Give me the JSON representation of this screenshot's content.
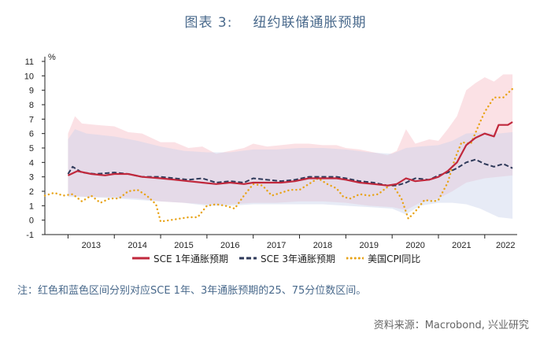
{
  "title": {
    "label": "图表 3:",
    "text": "纽约联储通胀预期"
  },
  "note": "注：红色和蓝色区间分别对应SCE 1年、3年通胀预期的25、75分位数区间。",
  "source": "资料来源：Macrobond, 兴业研究",
  "chart_data": {
    "type": "line",
    "ylabel": "%",
    "ylim": [
      -1,
      11
    ],
    "xlim": [
      2012.5,
      2022.7
    ],
    "yticks": [
      -1,
      0,
      1,
      2,
      3,
      4,
      5,
      6,
      7,
      8,
      9,
      10,
      11
    ],
    "xticks": [
      "2013",
      "2014",
      "2015",
      "2016",
      "2017",
      "2018",
      "2019",
      "2020",
      "2021",
      "2022"
    ],
    "grid": false,
    "legend_position": "bottom",
    "colors": {
      "sce1": "#c0283c",
      "sce3": "#2f3a5a",
      "cpi": "#e8a317",
      "band1": "#f7c9cf",
      "band3": "#c9d3ea"
    },
    "series": [
      {
        "name": "SCE 1年通胀预期",
        "style": "solid",
        "points": [
          [
            2013.0,
            3.1
          ],
          [
            2013.2,
            3.4
          ],
          [
            2013.5,
            3.2
          ],
          [
            2013.8,
            3.1
          ],
          [
            2014.0,
            3.2
          ],
          [
            2014.3,
            3.2
          ],
          [
            2014.6,
            3.0
          ],
          [
            2015.0,
            2.9
          ],
          [
            2015.3,
            2.8
          ],
          [
            2015.6,
            2.7
          ],
          [
            2015.9,
            2.6
          ],
          [
            2016.2,
            2.5
          ],
          [
            2016.5,
            2.6
          ],
          [
            2016.8,
            2.5
          ],
          [
            2017.0,
            2.6
          ],
          [
            2017.3,
            2.6
          ],
          [
            2017.6,
            2.6
          ],
          [
            2017.9,
            2.7
          ],
          [
            2018.2,
            2.9
          ],
          [
            2018.5,
            2.9
          ],
          [
            2018.8,
            2.9
          ],
          [
            2019.0,
            2.8
          ],
          [
            2019.3,
            2.6
          ],
          [
            2019.6,
            2.5
          ],
          [
            2019.9,
            2.4
          ],
          [
            2020.1,
            2.5
          ],
          [
            2020.3,
            2.9
          ],
          [
            2020.5,
            2.7
          ],
          [
            2020.8,
            2.8
          ],
          [
            2021.0,
            3.0
          ],
          [
            2021.2,
            3.4
          ],
          [
            2021.4,
            4.0
          ],
          [
            2021.6,
            5.2
          ],
          [
            2021.8,
            5.7
          ],
          [
            2022.0,
            6.0
          ],
          [
            2022.2,
            5.8
          ],
          [
            2022.3,
            6.6
          ],
          [
            2022.5,
            6.6
          ],
          [
            2022.6,
            6.8
          ]
        ]
      },
      {
        "name": "SCE 3年通胀预期",
        "style": "dashed",
        "points": [
          [
            2013.0,
            3.2
          ],
          [
            2013.1,
            3.7
          ],
          [
            2013.3,
            3.3
          ],
          [
            2013.6,
            3.2
          ],
          [
            2014.0,
            3.3
          ],
          [
            2014.3,
            3.2
          ],
          [
            2014.6,
            3.0
          ],
          [
            2015.0,
            3.0
          ],
          [
            2015.3,
            2.9
          ],
          [
            2015.6,
            2.8
          ],
          [
            2015.9,
            2.9
          ],
          [
            2016.2,
            2.6
          ],
          [
            2016.5,
            2.7
          ],
          [
            2016.8,
            2.6
          ],
          [
            2017.0,
            2.9
          ],
          [
            2017.3,
            2.8
          ],
          [
            2017.6,
            2.7
          ],
          [
            2017.9,
            2.8
          ],
          [
            2018.2,
            3.0
          ],
          [
            2018.5,
            3.0
          ],
          [
            2018.8,
            3.0
          ],
          [
            2019.0,
            2.9
          ],
          [
            2019.3,
            2.7
          ],
          [
            2019.6,
            2.6
          ],
          [
            2019.9,
            2.4
          ],
          [
            2020.1,
            2.4
          ],
          [
            2020.3,
            2.6
          ],
          [
            2020.5,
            2.9
          ],
          [
            2020.8,
            2.8
          ],
          [
            2021.0,
            3.1
          ],
          [
            2021.2,
            3.3
          ],
          [
            2021.4,
            3.6
          ],
          [
            2021.6,
            4.0
          ],
          [
            2021.8,
            4.2
          ],
          [
            2022.0,
            3.9
          ],
          [
            2022.2,
            3.7
          ],
          [
            2022.4,
            3.9
          ],
          [
            2022.6,
            3.6
          ]
        ]
      },
      {
        "name": "美国CPI同比",
        "style": "dotted",
        "points": [
          [
            2012.5,
            1.7
          ],
          [
            2012.7,
            1.9
          ],
          [
            2012.9,
            1.7
          ],
          [
            2013.1,
            1.8
          ],
          [
            2013.3,
            1.3
          ],
          [
            2013.5,
            1.7
          ],
          [
            2013.7,
            1.2
          ],
          [
            2013.9,
            1.5
          ],
          [
            2014.1,
            1.5
          ],
          [
            2014.3,
            2.0
          ],
          [
            2014.5,
            2.1
          ],
          [
            2014.7,
            1.7
          ],
          [
            2014.9,
            1.1
          ],
          [
            2015.0,
            -0.1
          ],
          [
            2015.2,
            0.0
          ],
          [
            2015.4,
            0.1
          ],
          [
            2015.6,
            0.2
          ],
          [
            2015.8,
            0.2
          ],
          [
            2016.0,
            1.0
          ],
          [
            2016.2,
            1.1
          ],
          [
            2016.4,
            1.0
          ],
          [
            2016.6,
            0.8
          ],
          [
            2016.8,
            1.7
          ],
          [
            2017.0,
            2.5
          ],
          [
            2017.2,
            2.4
          ],
          [
            2017.4,
            1.7
          ],
          [
            2017.6,
            1.9
          ],
          [
            2017.8,
            2.1
          ],
          [
            2018.0,
            2.1
          ],
          [
            2018.2,
            2.5
          ],
          [
            2018.4,
            2.9
          ],
          [
            2018.6,
            2.5
          ],
          [
            2018.8,
            2.2
          ],
          [
            2018.95,
            1.6
          ],
          [
            2019.1,
            1.5
          ],
          [
            2019.3,
            1.8
          ],
          [
            2019.5,
            1.7
          ],
          [
            2019.7,
            1.8
          ],
          [
            2019.9,
            2.3
          ],
          [
            2020.0,
            2.5
          ],
          [
            2020.2,
            1.5
          ],
          [
            2020.35,
            0.1
          ],
          [
            2020.5,
            0.6
          ],
          [
            2020.7,
            1.4
          ],
          [
            2020.9,
            1.3
          ],
          [
            2021.0,
            1.4
          ],
          [
            2021.2,
            2.6
          ],
          [
            2021.35,
            4.2
          ],
          [
            2021.5,
            5.4
          ],
          [
            2021.7,
            5.3
          ],
          [
            2021.9,
            6.8
          ],
          [
            2022.0,
            7.5
          ],
          [
            2022.2,
            8.5
          ],
          [
            2022.4,
            8.5
          ],
          [
            2022.6,
            9.1
          ]
        ]
      }
    ],
    "bands": [
      {
        "name": "SCE 1年25-75分位数区间",
        "upper": [
          [
            2013.0,
            6.0
          ],
          [
            2013.15,
            7.2
          ],
          [
            2013.3,
            6.7
          ],
          [
            2013.6,
            6.6
          ],
          [
            2014.0,
            6.5
          ],
          [
            2014.3,
            6.1
          ],
          [
            2014.6,
            6.0
          ],
          [
            2015.0,
            5.4
          ],
          [
            2015.3,
            5.4
          ],
          [
            2015.6,
            5.0
          ],
          [
            2015.9,
            5.1
          ],
          [
            2016.2,
            4.6
          ],
          [
            2016.5,
            4.8
          ],
          [
            2016.8,
            5.0
          ],
          [
            2017.0,
            5.3
          ],
          [
            2017.3,
            5.1
          ],
          [
            2017.6,
            5.2
          ],
          [
            2017.9,
            5.3
          ],
          [
            2018.2,
            5.3
          ],
          [
            2018.5,
            5.2
          ],
          [
            2018.8,
            5.2
          ],
          [
            2019.0,
            5.0
          ],
          [
            2019.3,
            4.9
          ],
          [
            2019.6,
            4.7
          ],
          [
            2019.9,
            4.5
          ],
          [
            2020.1,
            4.8
          ],
          [
            2020.3,
            6.3
          ],
          [
            2020.5,
            5.3
          ],
          [
            2020.8,
            5.6
          ],
          [
            2021.0,
            5.5
          ],
          [
            2021.2,
            6.3
          ],
          [
            2021.4,
            7.2
          ],
          [
            2021.6,
            9.0
          ],
          [
            2021.8,
            9.5
          ],
          [
            2022.0,
            9.9
          ],
          [
            2022.2,
            9.6
          ],
          [
            2022.4,
            10.1
          ],
          [
            2022.6,
            10.1
          ]
        ],
        "lower": [
          [
            2013.0,
            1.7
          ],
          [
            2013.5,
            1.6
          ],
          [
            2014.0,
            1.6
          ],
          [
            2014.5,
            1.5
          ],
          [
            2015.0,
            1.3
          ],
          [
            2015.5,
            1.2
          ],
          [
            2016.0,
            1.1
          ],
          [
            2016.5,
            1.1
          ],
          [
            2017.0,
            1.2
          ],
          [
            2017.5,
            1.2
          ],
          [
            2018.0,
            1.3
          ],
          [
            2018.5,
            1.3
          ],
          [
            2019.0,
            1.2
          ],
          [
            2019.5,
            1.0
          ],
          [
            2020.0,
            0.9
          ],
          [
            2020.3,
            0.7
          ],
          [
            2020.6,
            1.2
          ],
          [
            2021.0,
            1.5
          ],
          [
            2021.3,
            2.0
          ],
          [
            2021.6,
            2.6
          ],
          [
            2022.0,
            2.9
          ],
          [
            2022.3,
            3.0
          ],
          [
            2022.6,
            3.1
          ]
        ]
      },
      {
        "name": "SCE 3年25-75分位数区间",
        "upper": [
          [
            2013.0,
            5.6
          ],
          [
            2013.15,
            6.3
          ],
          [
            2013.4,
            6.0
          ],
          [
            2014.0,
            5.8
          ],
          [
            2014.5,
            5.5
          ],
          [
            2015.0,
            5.1
          ],
          [
            2015.5,
            4.8
          ],
          [
            2016.0,
            4.7
          ],
          [
            2016.5,
            4.7
          ],
          [
            2017.0,
            4.9
          ],
          [
            2017.5,
            4.9
          ],
          [
            2018.0,
            5.0
          ],
          [
            2018.5,
            5.0
          ],
          [
            2019.0,
            4.9
          ],
          [
            2019.5,
            4.7
          ],
          [
            2020.0,
            4.6
          ],
          [
            2020.3,
            5.0
          ],
          [
            2020.6,
            5.1
          ],
          [
            2021.0,
            5.2
          ],
          [
            2021.3,
            5.5
          ],
          [
            2021.6,
            6.0
          ],
          [
            2022.0,
            6.1
          ],
          [
            2022.3,
            6.0
          ],
          [
            2022.6,
            6.1
          ]
        ],
        "lower": [
          [
            2013.0,
            1.6
          ],
          [
            2013.5,
            1.6
          ],
          [
            2014.0,
            1.5
          ],
          [
            2014.5,
            1.4
          ],
          [
            2015.0,
            1.3
          ],
          [
            2015.5,
            1.2
          ],
          [
            2016.0,
            1.0
          ],
          [
            2016.5,
            1.0
          ],
          [
            2017.0,
            1.1
          ],
          [
            2017.5,
            1.1
          ],
          [
            2018.0,
            1.1
          ],
          [
            2018.5,
            1.1
          ],
          [
            2019.0,
            1.0
          ],
          [
            2019.5,
            0.9
          ],
          [
            2020.0,
            0.8
          ],
          [
            2020.3,
            0.4
          ],
          [
            2020.6,
            1.0
          ],
          [
            2021.0,
            1.2
          ],
          [
            2021.3,
            1.2
          ],
          [
            2021.6,
            1.1
          ],
          [
            2021.9,
            0.8
          ],
          [
            2022.1,
            0.5
          ],
          [
            2022.3,
            0.2
          ],
          [
            2022.6,
            0.1
          ]
        ]
      }
    ]
  }
}
